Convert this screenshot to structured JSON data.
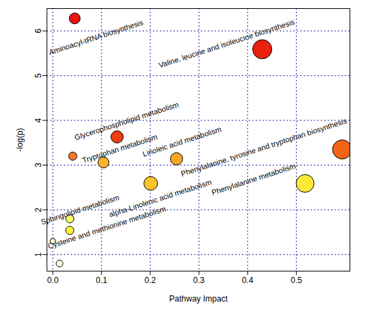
{
  "chart_data": {
    "type": "scatter",
    "x_label": "Pathway Impact",
    "y_label": "-log(p)",
    "x": [
      0.045,
      0.43,
      0.132,
      0.041,
      0.104,
      0.254,
      0.594,
      0.518,
      0.201,
      0.035,
      0.035,
      0.0,
      0.014
    ],
    "y": [
      6.28,
      5.59,
      3.63,
      3.2,
      3.06,
      3.14,
      3.35,
      2.59,
      2.59,
      1.8,
      1.54,
      1.3,
      0.8
    ],
    "sizes": [
      8,
      14,
      9,
      6,
      8,
      9,
      14,
      13,
      10,
      6,
      6,
      4,
      5
    ],
    "colors": [
      "#e8140f",
      "#e8220f",
      "#ec3c12",
      "#f07a25",
      "#f7b32b",
      "#f5a623",
      "#f26418",
      "#fde93a",
      "#fbc42a",
      "#ffff66",
      "#fff23a",
      "#ffffcc",
      "#ffffe8"
    ],
    "point_labels": [
      "Aminoacyl-tRNA biosynthesis",
      "Valine, leucine and isoleucine biosynthesis",
      "Glycerophospholipid metabolism",
      null,
      "Tryptophan metabolism",
      "Linoleic acid metabolism",
      "Phenylalanine, tyrosine and tryptophan biosynthesis",
      "Phenylalanine metabolism",
      "alpha-Linolenic acid metabolism",
      "Sphingolipid metabolism",
      "Cysteine and methionine metabolism",
      null,
      null
    ],
    "xlim": [
      -0.012,
      0.61
    ],
    "ylim": [
      0.63,
      6.5
    ],
    "xticks": [
      {
        "value": 0,
        "label": "0.0"
      },
      0.1,
      0.2,
      0.3,
      0.4,
      0.5
    ],
    "yticks": [
      1,
      2,
      3,
      4,
      5,
      6
    ],
    "grid": true,
    "marker": "circle"
  }
}
